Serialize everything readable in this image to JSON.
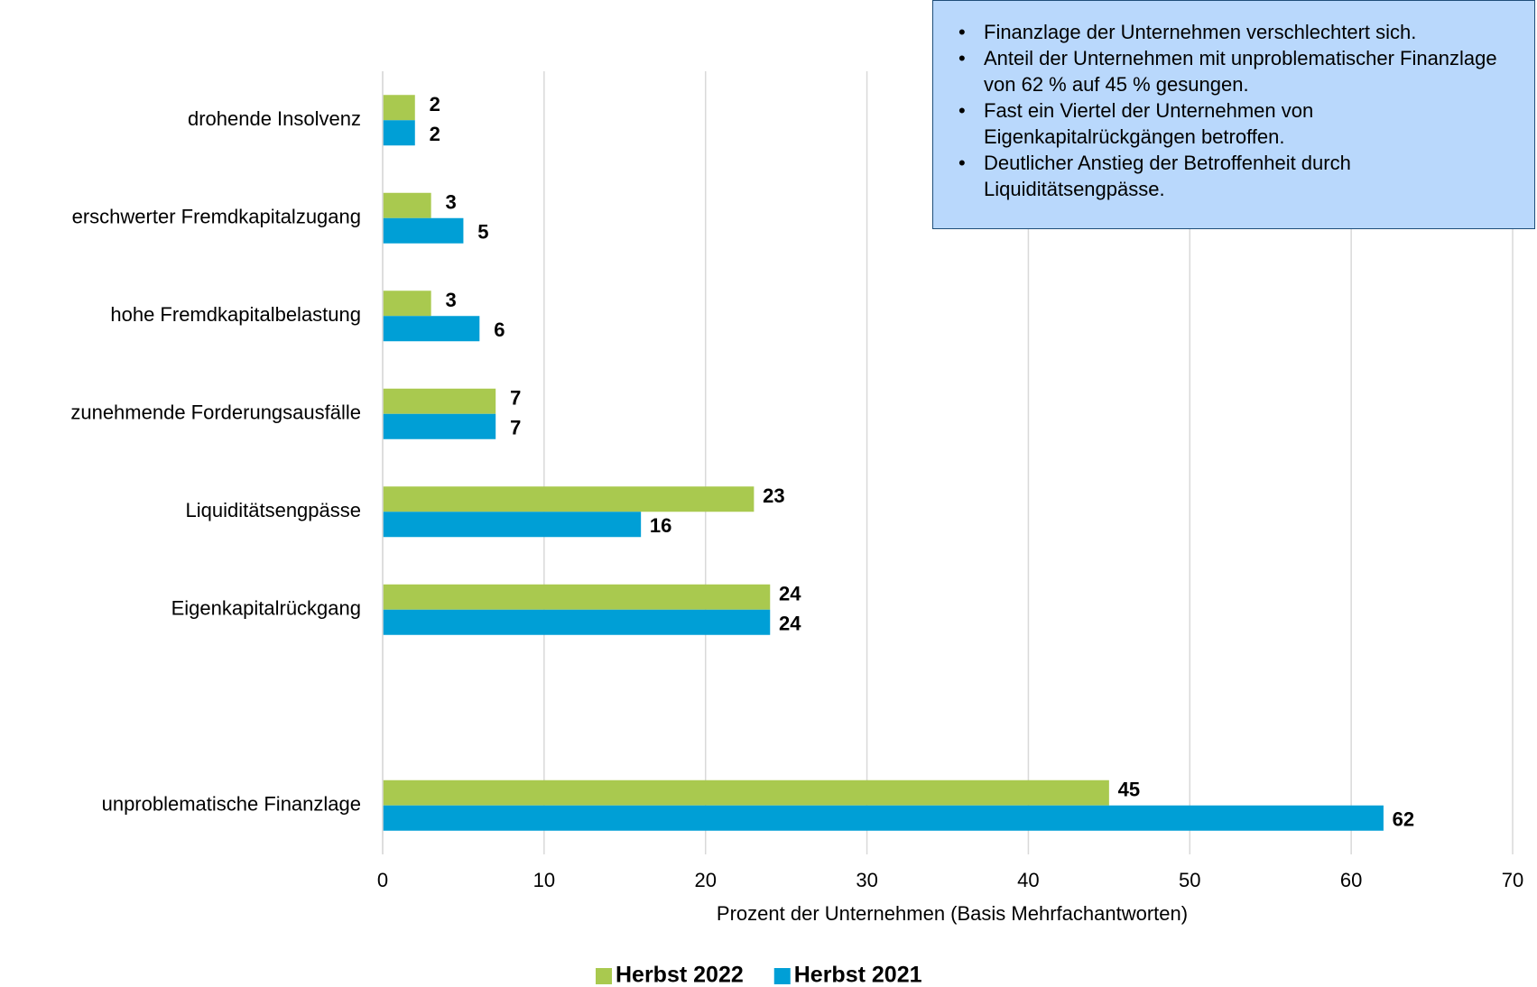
{
  "chart_data": {
    "type": "hbar",
    "categories": [
      "drohende Insolvenz",
      "erschwerter Fremdkapitalzugang",
      "hohe Fremdkapitalbelastung",
      "zunehmende Forderungsausfälle",
      "Liquiditätsengpässe",
      "Eigenkapitalrückgang",
      null,
      "unproblematische Finanzlage"
    ],
    "series": [
      {
        "name": "Herbst 2022",
        "color": "#a9c94f",
        "values": [
          2,
          3,
          3,
          7,
          23,
          24,
          null,
          45
        ]
      },
      {
        "name": "Herbst 2021",
        "color": "#009fd6",
        "values": [
          2,
          5,
          6,
          7,
          16,
          24,
          null,
          62
        ]
      }
    ],
    "xlim": [
      0,
      70
    ],
    "xticks": [
      0,
      10,
      20,
      30,
      40,
      50,
      60,
      70
    ],
    "x_label": "Prozent der Unternehmen (Basis Mehrfachantworten)",
    "grid": true,
    "legend": "bottom",
    "annotations": [
      "Finanzlage der Unternehmen verschlechtert sich.",
      "Anteil der Unternehmen mit unproblematischer Finanzlage von 62 % auf 45 % gesungen.",
      "Fast ein Viertel der Unternehmen von Eigenkapitalrückgängen betroffen.",
      "Deutlicher Anstieg der Betroffenheit durch Liquiditätsengpässe."
    ]
  }
}
